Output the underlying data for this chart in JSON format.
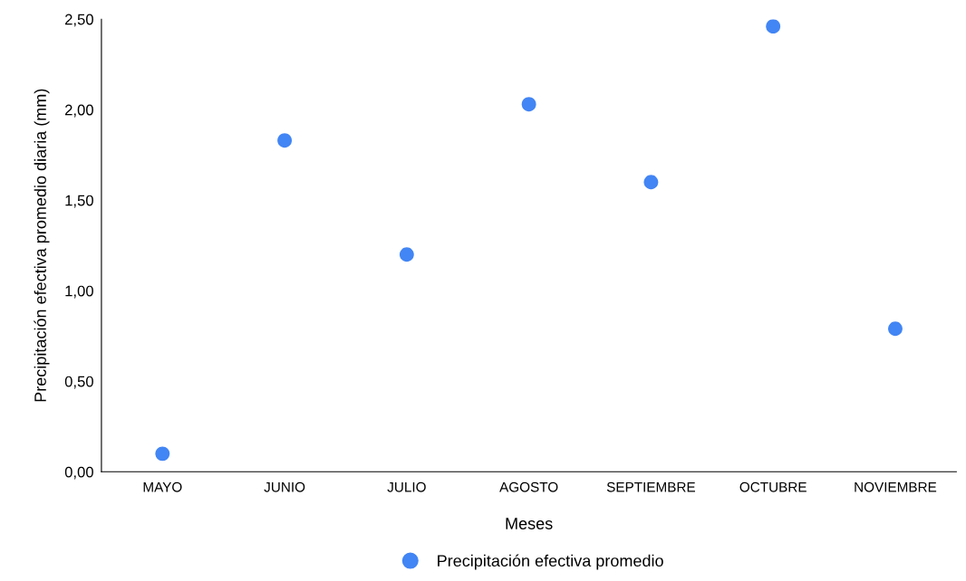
{
  "chart_data": {
    "type": "scatter",
    "xlabel": "Meses",
    "ylabel": "Precipitación efectiva promedio diaria (mm)",
    "categories": [
      "MAYO",
      "JUNIO",
      "JULIO",
      "AGOSTO",
      "SEPTIEMBRE",
      "OCTUBRE",
      "NOVIEMBRE"
    ],
    "series": [
      {
        "name": "Precipitación efectiva promedio",
        "color": "#4285f4",
        "values": [
          0.1,
          1.83,
          1.2,
          2.03,
          1.6,
          2.46,
          0.79
        ]
      }
    ],
    "ylim": [
      0,
      2.5
    ],
    "yticks": [
      {
        "value": 0,
        "label": "0,00"
      },
      {
        "value": 0.5,
        "label": "0,50"
      },
      {
        "value": 1,
        "label": "1,00"
      },
      {
        "value": 1.5,
        "label": "1,50"
      },
      {
        "value": 2,
        "label": "2,00"
      },
      {
        "value": 2.5,
        "label": "2,50"
      }
    ],
    "grid": false,
    "legend": "bottom",
    "marker": "circle"
  }
}
